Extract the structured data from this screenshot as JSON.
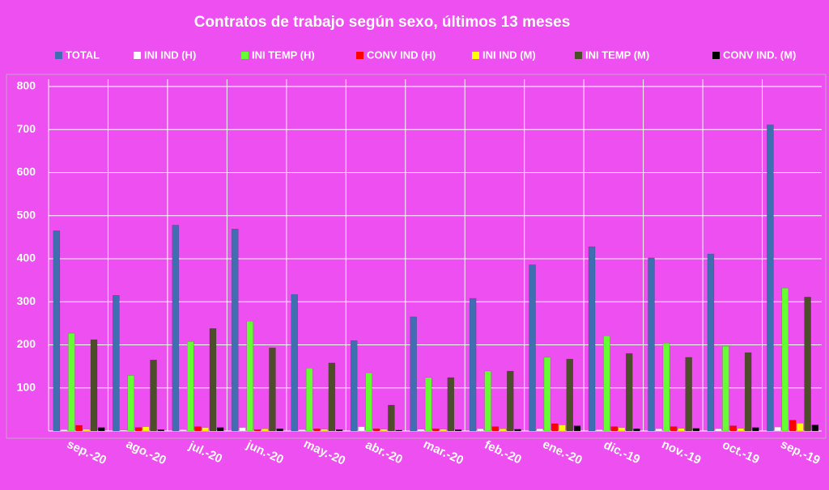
{
  "chart_data": {
    "type": "bar",
    "title": "Contratos de trabajo según sexo, últimos 13 meses",
    "categories": [
      "sep.-20",
      "ago.-20",
      "jul.-20",
      "jun.-20",
      "may.-20",
      "abr.-20",
      "mar.-20",
      "feb.-20",
      "ene.-20",
      "dic.-19",
      "nov.-19",
      "oct.-19",
      "sep.-19"
    ],
    "series": [
      {
        "name": "TOTAL",
        "color": "#3f6fb0",
        "values": [
          465,
          315,
          478,
          469,
          317,
          210,
          265,
          308,
          386,
          428,
          402,
          411,
          711
        ]
      },
      {
        "name": "INI IND (H)",
        "color": "#ffffff",
        "values": [
          3,
          2,
          3,
          8,
          3,
          10,
          4,
          5,
          5,
          3,
          5,
          5,
          9
        ]
      },
      {
        "name": "INI TEMP (H)",
        "color": "#66ff33",
        "values": [
          227,
          129,
          208,
          255,
          146,
          135,
          124,
          139,
          171,
          221,
          204,
          197,
          332
        ]
      },
      {
        "name": "CONV IND (H)",
        "color": "#ff0000",
        "values": [
          13,
          8,
          10,
          3,
          5,
          5,
          5,
          10,
          17,
          10,
          10,
          12,
          25
        ]
      },
      {
        "name": "INI IND (M)",
        "color": "#ffff00",
        "values": [
          4,
          10,
          8,
          5,
          4,
          4,
          4,
          5,
          14,
          8,
          6,
          6,
          18
        ]
      },
      {
        "name": "INI TEMP  (M)",
        "color": "#4d4d2a",
        "values": [
          212,
          165,
          238,
          193,
          158,
          60,
          124,
          139,
          167,
          180,
          171,
          182,
          311
        ]
      },
      {
        "name": "CONV IND.  (M)",
        "color": "#000000",
        "values": [
          8,
          3,
          8,
          5,
          3,
          2,
          3,
          4,
          12,
          5,
          6,
          8,
          14
        ]
      }
    ],
    "ylim": [
      0,
      800
    ],
    "yticks": [
      100,
      200,
      300,
      400,
      500,
      600,
      700,
      800
    ],
    "grid": true
  }
}
